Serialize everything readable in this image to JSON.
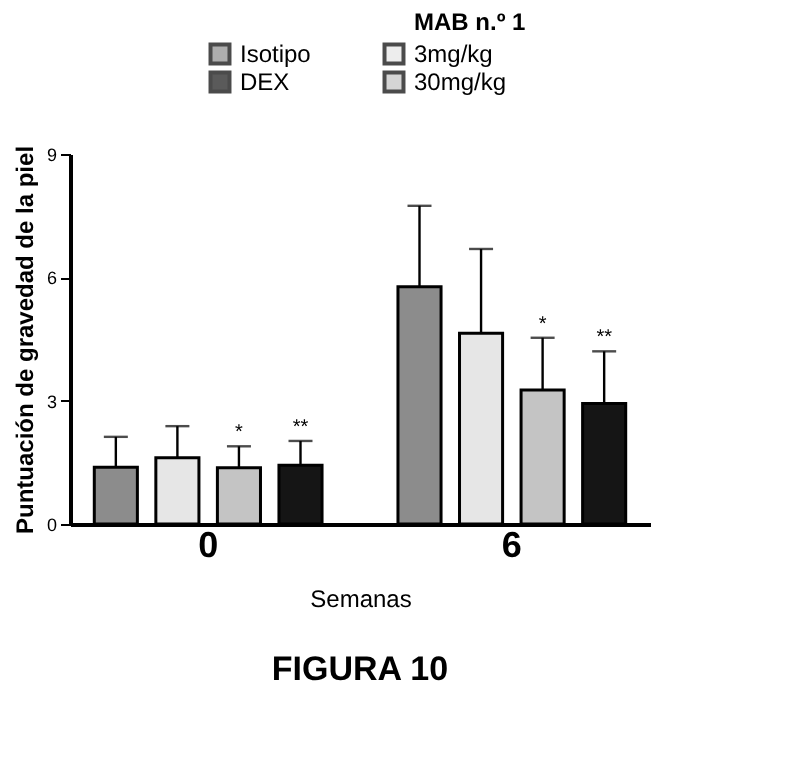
{
  "chart_data": {
    "type": "bar",
    "title": "FIGURA 10",
    "xlabel": "Semanas",
    "ylabel": "Puntuación de gravedad de la piel",
    "legend_title": "MAB n.º 1",
    "legend": "top",
    "grid": false,
    "categories": [
      "0",
      "6"
    ],
    "series": [
      {
        "name": "Isotipo",
        "color": "#8c8c8c",
        "values": [
          1.38,
          5.77
        ],
        "errors": [
          [
            1.38,
            2.12
          ],
          [
            5.77,
            7.74
          ]
        ]
      },
      {
        "name": "3mg/kg",
        "color": "#e6e6e6",
        "values": [
          1.61,
          4.64
        ],
        "errors": [
          [
            1.61,
            2.38
          ],
          [
            4.64,
            6.69
          ]
        ]
      },
      {
        "name": "30mg/kg",
        "color": "#c4c4c4",
        "values": [
          1.37,
          3.26
        ],
        "errors": [
          [
            1.37,
            1.89
          ],
          [
            3.26,
            4.53
          ]
        ],
        "value_labels": [
          "*",
          "*"
        ]
      },
      {
        "name": "DEX",
        "color": "#151515",
        "values": [
          1.43,
          2.93
        ],
        "errors": [
          [
            1.43,
            2.02
          ],
          [
            2.93,
            4.2
          ]
        ],
        "value_labels": [
          "**",
          "**"
        ]
      }
    ],
    "ylim": [
      0,
      9
    ],
    "yticks": [
      0,
      3,
      6,
      9
    ]
  }
}
